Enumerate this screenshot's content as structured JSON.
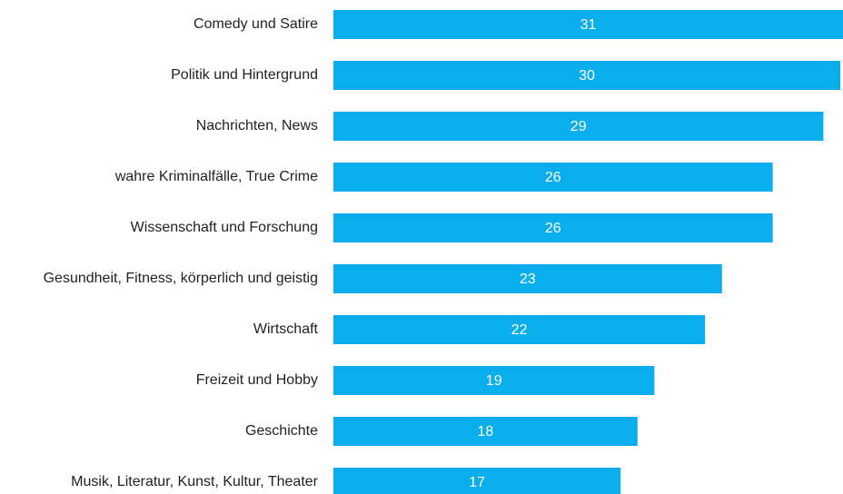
{
  "chart_data": {
    "type": "barh",
    "categories": [
      "Comedy und Satire",
      "Politik und Hintergrund",
      "Nachrichten, News",
      "wahre Kriminalfälle, True Crime",
      "Wissenschaft und Forschung",
      "Gesundheit, Fitness, körperlich und geistig",
      "Wirtschaft",
      "Freizeit und Hobby",
      "Geschichte",
      "Musik, Literatur, Kunst, Kultur, Theater"
    ],
    "values": [
      31,
      30,
      29,
      26,
      26,
      23,
      22,
      19,
      18,
      17
    ],
    "color": "#0aaeec"
  }
}
